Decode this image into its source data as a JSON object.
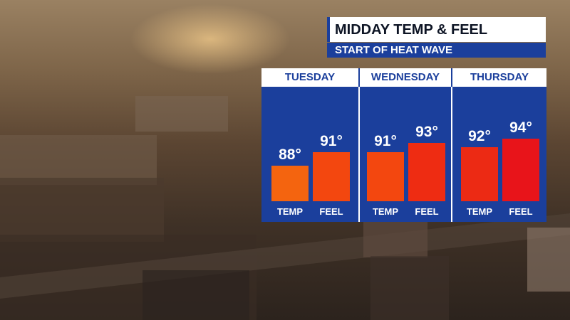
{
  "header": {
    "title": "MIDDAY TEMP & FEEL",
    "subtitle": "START OF HEAT WAVE"
  },
  "colors": {
    "panel_blue": "#1b3f9c",
    "temp_88": "#f4640f",
    "feel_91": "#f3470f",
    "temp_91": "#f3470f",
    "feel_93": "#ee2c12",
    "temp_92": "#ec2a14",
    "feel_94": "#e8141a"
  },
  "chart_data": {
    "type": "bar",
    "categories": [
      "TUESDAY",
      "WEDNESDAY",
      "THURSDAY"
    ],
    "series": [
      {
        "name": "TEMP",
        "values": [
          88,
          91,
          92
        ],
        "labels": [
          "88°",
          "91°",
          "92°"
        ]
      },
      {
        "name": "FEEL",
        "values": [
          91,
          93,
          94
        ],
        "labels": [
          "91°",
          "93°",
          "94°"
        ]
      }
    ],
    "title": "MIDDAY TEMP & FEEL",
    "subtitle": "START OF HEAT WAVE",
    "ylim": [
      80,
      95
    ],
    "grid": false,
    "legend": "none"
  }
}
